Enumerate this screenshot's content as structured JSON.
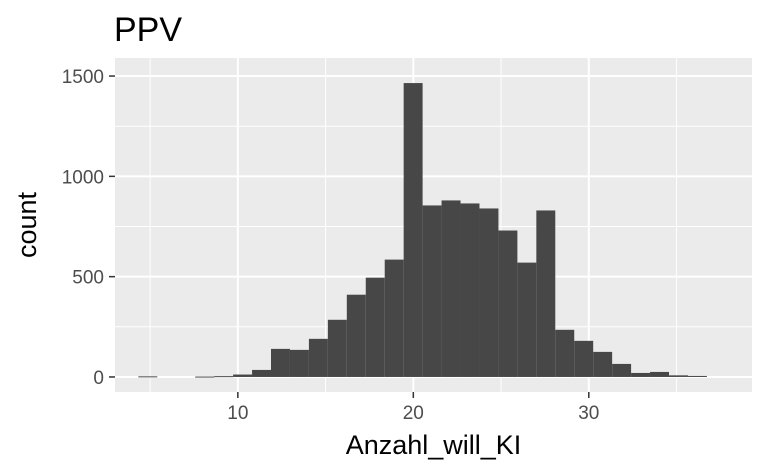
{
  "chart_data": {
    "type": "bar",
    "title": "PPV",
    "xlabel": "Anzahl_will_KI",
    "ylabel": "count",
    "xlim": [
      3.0,
      39.3
    ],
    "ylim": [
      -75,
      1590
    ],
    "x_ticks": [
      10,
      20,
      30
    ],
    "y_ticks": [
      0,
      500,
      1000,
      1500
    ],
    "grid": true,
    "legend": "none",
    "colors": {
      "bar": "#474747",
      "panel": "#ebebeb",
      "grid": "#ffffff"
    },
    "bin_width": 1.08,
    "bins": [
      {
        "x": 4.87,
        "count": 3
      },
      {
        "x": 8.11,
        "count": 2
      },
      {
        "x": 9.19,
        "count": 4
      },
      {
        "x": 10.27,
        "count": 12
      },
      {
        "x": 11.35,
        "count": 35
      },
      {
        "x": 12.43,
        "count": 140
      },
      {
        "x": 13.51,
        "count": 135
      },
      {
        "x": 14.59,
        "count": 190
      },
      {
        "x": 15.67,
        "count": 285
      },
      {
        "x": 16.75,
        "count": 410
      },
      {
        "x": 17.83,
        "count": 495
      },
      {
        "x": 18.91,
        "count": 585
      },
      {
        "x": 19.99,
        "count": 1465
      },
      {
        "x": 21.07,
        "count": 855
      },
      {
        "x": 22.15,
        "count": 880
      },
      {
        "x": 23.23,
        "count": 865
      },
      {
        "x": 24.31,
        "count": 840
      },
      {
        "x": 25.39,
        "count": 730
      },
      {
        "x": 26.47,
        "count": 570
      },
      {
        "x": 27.55,
        "count": 830
      },
      {
        "x": 28.63,
        "count": 235
      },
      {
        "x": 29.71,
        "count": 180
      },
      {
        "x": 30.79,
        "count": 125
      },
      {
        "x": 31.87,
        "count": 65
      },
      {
        "x": 32.95,
        "count": 20
      },
      {
        "x": 34.03,
        "count": 25
      },
      {
        "x": 35.11,
        "count": 8
      },
      {
        "x": 36.19,
        "count": 5
      }
    ]
  }
}
